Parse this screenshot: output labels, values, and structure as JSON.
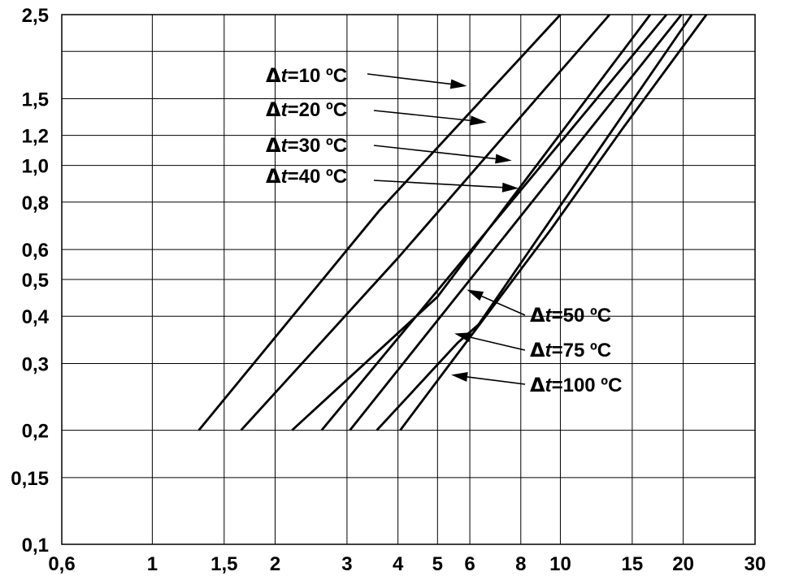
{
  "chart_data": {
    "type": "line",
    "title": "",
    "xlabel": "",
    "ylabel": "",
    "xscale": "log",
    "yscale": "log",
    "xlim": [
      0.6,
      30
    ],
    "ylim": [
      0.1,
      2.5
    ],
    "grid": true,
    "x_ticks": [
      {
        "value": 0.6,
        "label": "0,6"
      },
      {
        "value": 1,
        "label": "1"
      },
      {
        "value": 1.5,
        "label": "1,5"
      },
      {
        "value": 2,
        "label": "2"
      },
      {
        "value": 3,
        "label": "3"
      },
      {
        "value": 4,
        "label": "4"
      },
      {
        "value": 5,
        "label": "5"
      },
      {
        "value": 6,
        "label": "6"
      },
      {
        "value": 8,
        "label": "8"
      },
      {
        "value": 10,
        "label": "10"
      },
      {
        "value": 15,
        "label": "15"
      },
      {
        "value": 20,
        "label": "20"
      },
      {
        "value": 30,
        "label": "30"
      }
    ],
    "y_ticks": [
      {
        "value": 0.1,
        "label": "0,1"
      },
      {
        "value": 0.15,
        "label": "0,15"
      },
      {
        "value": 0.2,
        "label": "0,2"
      },
      {
        "value": 0.3,
        "label": "0,3"
      },
      {
        "value": 0.4,
        "label": "0,4"
      },
      {
        "value": 0.5,
        "label": "0,5"
      },
      {
        "value": 0.6,
        "label": "0,6"
      },
      {
        "value": 0.8,
        "label": "0,8"
      },
      {
        "value": 1.0,
        "label": "1,0"
      },
      {
        "value": 1.2,
        "label": "1,2"
      },
      {
        "value": 1.5,
        "label": "1,5"
      },
      {
        "value": 2.5,
        "label": "2,5"
      }
    ],
    "extra_grid_y": [
      2.0
    ],
    "series": [
      {
        "name": "Δt=10 ºC",
        "x": [
          1.3,
          3.6,
          10.0
        ],
        "y": [
          0.2,
          0.76,
          2.5
        ]
      },
      {
        "name": "Δt=20 ºC",
        "x": [
          1.65,
          4.0,
          13.2
        ],
        "y": [
          0.2,
          0.57,
          2.5
        ]
      },
      {
        "name": "Δt=30 ºC",
        "x": [
          2.2,
          5.0,
          16.6
        ],
        "y": [
          0.2,
          0.45,
          2.5
        ]
      },
      {
        "name": "Δt=40 ºC",
        "x": [
          2.6,
          18.2
        ],
        "y": [
          0.2,
          2.5
        ]
      },
      {
        "name": "Δt=50 ºC",
        "x": [
          3.05,
          19.8
        ],
        "y": [
          0.2,
          2.5
        ]
      },
      {
        "name": "Δt=75 ºC",
        "x": [
          3.55,
          5.6,
          6.3,
          21.0
        ],
        "y": [
          0.2,
          0.34,
          0.38,
          2.5
        ]
      },
      {
        "name": "Δt=100 ºC",
        "x": [
          4.05,
          9.5,
          14.2,
          22.8
        ],
        "y": [
          0.2,
          0.68,
          1.25,
          2.5
        ]
      }
    ],
    "annotations": [
      {
        "sym": "Δ",
        "t": "t",
        "rest": "=10 ºC"
      },
      {
        "sym": "Δ",
        "t": "t",
        "rest": "=20 ºC"
      },
      {
        "sym": "Δ",
        "t": "t",
        "rest": "=30 ºC"
      },
      {
        "sym": "Δ",
        "t": "t",
        "rest": "=40 ºC"
      },
      {
        "sym": "Δ",
        "t": "t",
        "rest": "=50 ºC"
      },
      {
        "sym": "Δ",
        "t": "t",
        "rest": "=75 ºC"
      },
      {
        "sym": "Δ",
        "t": "t",
        "rest": "=100 ºC"
      }
    ]
  }
}
